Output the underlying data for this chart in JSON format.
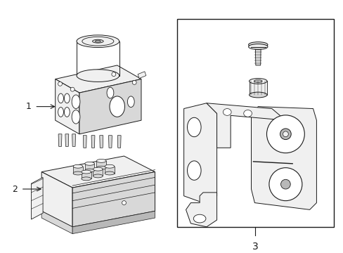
{
  "background_color": "#ffffff",
  "line_color": "#1a1a1a",
  "fill_light": "#f0f0f0",
  "fill_mid": "#d8d8d8",
  "fill_dark": "#b8b8b8",
  "fig_width": 4.89,
  "fig_height": 3.6,
  "dpi": 100
}
